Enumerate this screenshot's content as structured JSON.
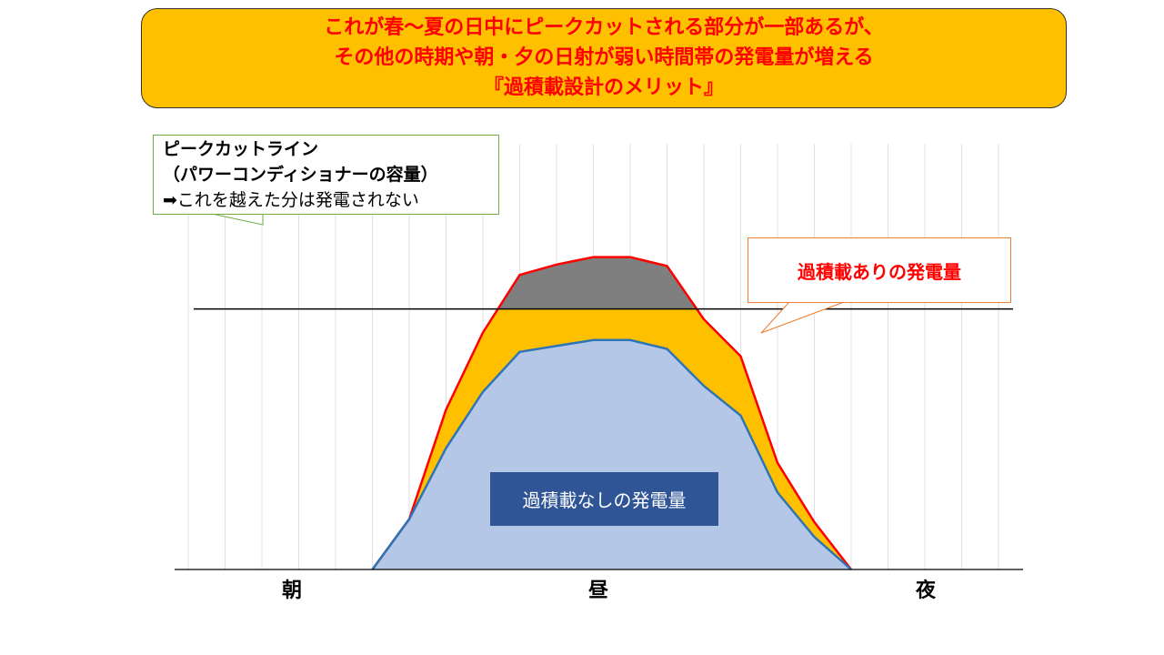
{
  "banner": {
    "line1": "これが春～夏の日中にピークカットされる部分が一部あるが、",
    "line2": "その他の時期や朝・夕の日射が弱い時間帯の発電量が増える",
    "line3": "『過積載設計のメリット』"
  },
  "callouts": {
    "peak_line1": "ピークカットライン",
    "peak_line2": "（パワーコンディショナーの容量）",
    "peak_line3": "➡これを越えた分は発電されない",
    "with_overload": "過積載ありの発電量",
    "without_overload": "過積載なしの発電量"
  },
  "axis": {
    "morning": "朝",
    "noon": "昼",
    "night": "夜"
  },
  "colors": {
    "banner_bg": "#ffc000",
    "banner_text": "#ff0000",
    "with_fill": "#ffc000",
    "with_line": "#ff0000",
    "without_fill": "#b4c7e7",
    "without_line": "#2e75b6",
    "clipped_fill": "#7f7f7f",
    "without_label_bg": "#2f5597"
  },
  "chart_data": {
    "type": "area",
    "x": [
      0,
      1,
      2,
      3,
      4,
      5,
      6,
      7,
      8,
      9,
      10,
      11,
      12,
      13,
      14,
      15,
      16,
      17,
      18,
      19,
      20,
      21,
      22
    ],
    "series": [
      {
        "name": "過積載ありの発電量",
        "values": [
          0,
          0,
          0,
          0,
          0,
          0,
          0.17,
          0.54,
          0.8,
          0.995,
          1.03,
          1.055,
          1.055,
          1.025,
          0.845,
          0.72,
          0.36,
          0.16,
          0,
          0,
          0,
          0,
          0
        ]
      },
      {
        "name": "過積載なしの発電量",
        "values": [
          0,
          0,
          0,
          0,
          0,
          0,
          0.17,
          0.41,
          0.6,
          0.735,
          0.755,
          0.775,
          0.775,
          0.745,
          0.62,
          0.52,
          0.26,
          0.11,
          0,
          0,
          0,
          0,
          0
        ]
      }
    ],
    "peak_cut_line": 0.88,
    "ylim": [
      0,
      1.1
    ],
    "grid": "vertical"
  }
}
